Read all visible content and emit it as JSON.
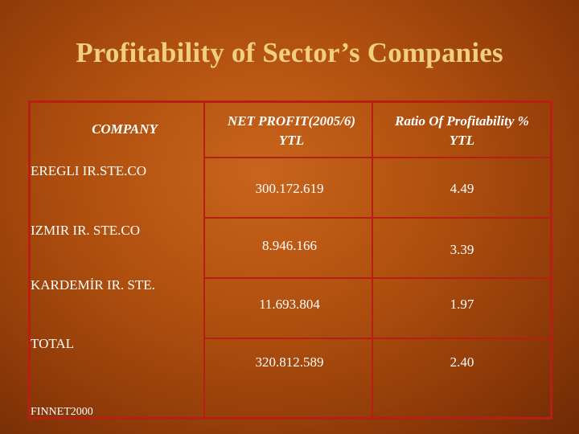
{
  "slide": {
    "title": "Profitability of Sector’s Companies",
    "source": "FINNET2000"
  },
  "table": {
    "headers": {
      "company": "COMPANY",
      "net_profit_line1": "NET PROFIT(2005/6)",
      "net_profit_line2": "YTL",
      "ratio_line1": "Ratio Of  Profitability %",
      "ratio_line2": "YTL"
    },
    "rows": [
      {
        "company": "EREGLI IR.STE.CO",
        "net_profit": "300.172.619",
        "ratio": "4.49"
      },
      {
        "company": "IZMIR IR. STE.CO",
        "net_profit": "8.946.166",
        "ratio": "3.39"
      },
      {
        "company": "KARDEMİR IR. STE.",
        "net_profit": "11.693.804",
        "ratio": "1.97"
      },
      {
        "company": "TOTAL",
        "net_profit": "320.812.589",
        "ratio": "2.40"
      }
    ]
  },
  "colors": {
    "title": "#f1cf80",
    "grid": "#b81f14",
    "text": "#ffffff"
  }
}
